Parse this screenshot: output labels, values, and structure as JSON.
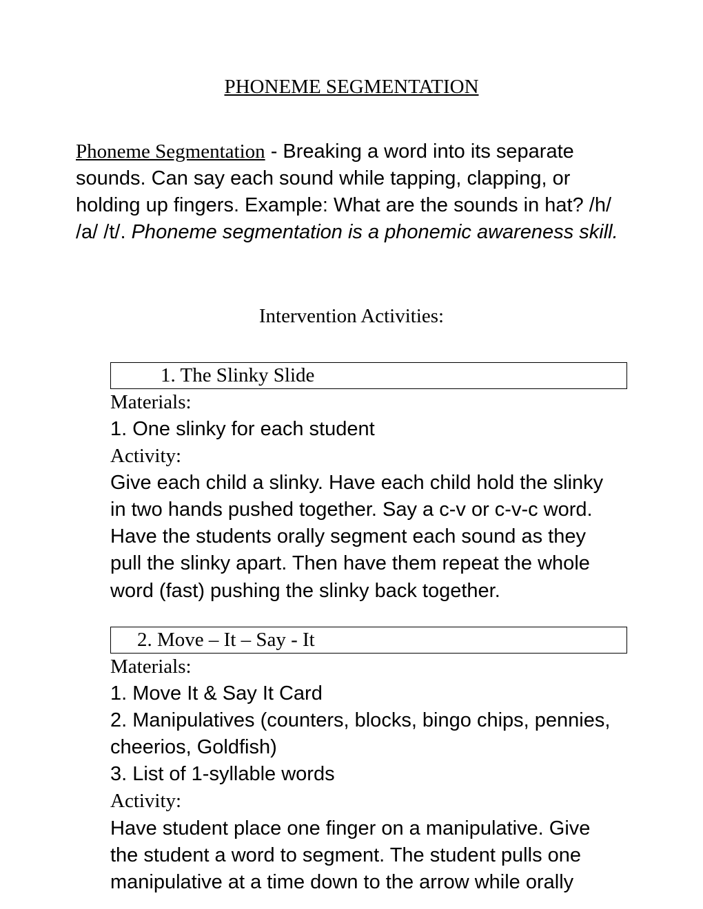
{
  "title": "PHONEME SEGMENTATION",
  "intro": {
    "heading": "Phoneme Segmentation",
    "body": " - Breaking a word into its separate sounds.  Can say each sound while tapping, clapping, or holding up fingers.  Example: What are the sounds in hat? /h/ /a/ /t/.  ",
    "italic": "Phoneme segmentation is a phonemic awareness skill."
  },
  "section_title": "Intervention Activities:",
  "activity1": {
    "box_label": "1.  The Slinky Slide",
    "materials_label": "Materials:",
    "material_1": "1. One slinky for each student",
    "activity_label": "Activity:",
    "activity_text": "Give each child a slinky.   Have each child hold the slinky in two hands pushed together.  Say a c-v or c-v-c word.  Have the students orally segment each sound as they pull the slinky apart.  Then have them repeat the whole word (fast) pushing the slinky back together."
  },
  "activity2": {
    "box_label": "2.  Move – It – Say - It",
    "materials_label": "Materials:",
    "material_1": "1. Move It & Say It Card",
    "material_2": "2. Manipulatives (counters, blocks, bingo chips, pennies, cheerios, Goldfish)",
    "material_3": "3. List of 1-syllable words",
    "activity_label": "Activity:",
    "activity_text": "Have student place one finger on a manipulative.  Give the student a word to segment.  The student pulls one manipulative at a time down to the arrow while orally"
  },
  "colors": {
    "text": "#000000",
    "background": "#ffffff",
    "border": "#000000"
  }
}
